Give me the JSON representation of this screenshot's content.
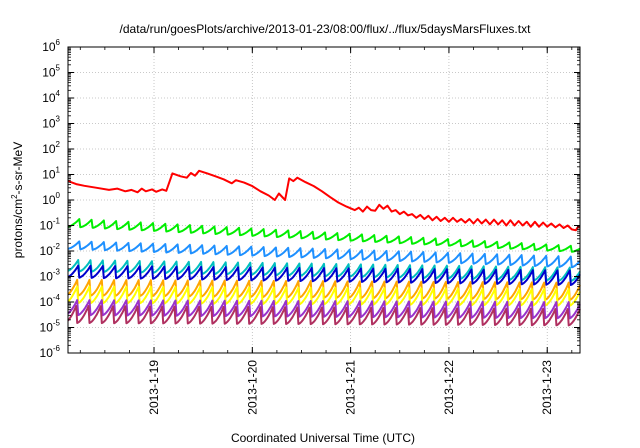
{
  "chart_data": {
    "type": "line",
    "title": "/data/run/goesPlots/archive/2013-01-23/08:00/flux/../flux/5daysMarsFluxes.txt",
    "xlabel": "Coordinated Universal Time (UTC)",
    "ylabel": {
      "pre": "protons/cm",
      "sup": "2",
      "post": "-s-sr-MeV"
    },
    "x_range": [
      "2013-01-18T03:00",
      "2013-01-23T08:00"
    ],
    "x_ticks": [
      "2013-1-19",
      "2013-1-20",
      "2013-1-21",
      "2013-1-22",
      "2013-1-23"
    ],
    "y_scale": "log",
    "ylim": [
      1e-06,
      1000000.0
    ],
    "y_tick_exponents": [
      "-6",
      "-5",
      "-4",
      "-3",
      "-2",
      "-1",
      "0",
      "1",
      "2",
      "3",
      "4",
      "5",
      "6"
    ],
    "y_tick_base": "10",
    "grid": true,
    "legend": "none",
    "series": [
      {
        "color": "#ff0000",
        "pattern": "sawtooth",
        "points": [
          [
            "2013-01-18T03:00",
            5.5
          ],
          [
            "2013-01-18T05:00",
            4.2
          ],
          [
            "2013-01-18T07:00",
            3.6
          ],
          [
            "2013-01-18T10:00",
            3.0
          ],
          [
            "2013-01-18T13:00",
            2.5
          ],
          [
            "2013-01-18T15:00",
            2.8
          ],
          [
            "2013-01-18T17:00",
            2.2
          ],
          [
            "2013-01-18T18:30",
            2.5
          ],
          [
            "2013-01-18T20:00",
            2.0
          ],
          [
            "2013-01-18T21:00",
            2.8
          ],
          [
            "2013-01-18T22:00",
            2.2
          ],
          [
            "2013-01-18T23:30",
            2.6
          ],
          [
            "2013-01-19T00:30",
            2.1
          ],
          [
            "2013-01-19T02:00",
            2.6
          ],
          [
            "2013-01-19T03:00",
            2.3
          ],
          [
            "2013-01-19T04:30",
            11.0
          ],
          [
            "2013-01-19T06:30",
            8.5
          ],
          [
            "2013-01-19T08:00",
            7.5
          ],
          [
            "2013-01-19T09:00",
            11.5
          ],
          [
            "2013-01-19T10:00",
            9.0
          ],
          [
            "2013-01-19T11:00",
            14.0
          ],
          [
            "2013-01-19T13:00",
            11.0
          ],
          [
            "2013-01-19T15:00",
            8.5
          ],
          [
            "2013-01-19T17:00",
            6.5
          ],
          [
            "2013-01-19T19:00",
            4.5
          ],
          [
            "2013-01-19T20:00",
            6.0
          ],
          [
            "2013-01-19T22:00",
            4.8
          ],
          [
            "2013-01-20T00:00",
            3.5
          ],
          [
            "2013-01-20T02:00",
            2.2
          ],
          [
            "2013-01-20T04:00",
            1.5
          ],
          [
            "2013-01-20T05:30",
            1.0
          ],
          [
            "2013-01-20T06:30",
            1.8
          ],
          [
            "2013-01-20T08:00",
            1.0
          ],
          [
            "2013-01-20T09:00",
            7.0
          ],
          [
            "2013-01-20T10:00",
            5.5
          ],
          [
            "2013-01-20T11:00",
            7.5
          ],
          [
            "2013-01-20T13:00",
            5.0
          ],
          [
            "2013-01-20T15:00",
            3.5
          ],
          [
            "2013-01-20T17:00",
            2.2
          ],
          [
            "2013-01-20T19:00",
            1.3
          ],
          [
            "2013-01-20T21:00",
            0.8
          ],
          [
            "2013-01-20T23:00",
            0.55
          ],
          [
            "2013-01-21T01:00",
            0.4
          ],
          [
            "2013-01-21T02:00",
            0.5
          ],
          [
            "2013-01-21T03:00",
            0.35
          ],
          [
            "2013-01-21T04:00",
            0.55
          ],
          [
            "2013-01-21T05:00",
            0.4
          ],
          [
            "2013-01-21T06:00",
            0.38
          ],
          [
            "2013-01-21T07:00",
            0.65
          ],
          [
            "2013-01-21T08:00",
            0.45
          ],
          [
            "2013-01-21T09:00",
            0.6
          ],
          [
            "2013-01-21T10:00",
            0.35
          ],
          [
            "2013-01-21T11:00",
            0.4
          ],
          [
            "2013-01-21T12:00",
            0.28
          ],
          [
            "2013-01-21T13:00",
            0.35
          ],
          [
            "2013-01-21T14:00",
            0.25
          ],
          [
            "2013-01-21T15:00",
            0.28
          ],
          [
            "2013-01-21T16:00",
            0.2
          ],
          [
            "2013-01-21T17:00",
            0.26
          ],
          [
            "2013-01-21T18:00",
            0.18
          ],
          [
            "2013-01-21T19:00",
            0.24
          ],
          [
            "2013-01-21T20:00",
            0.16
          ],
          [
            "2013-01-21T21:00",
            0.22
          ],
          [
            "2013-01-21T22:00",
            0.15
          ],
          [
            "2013-01-21T23:00",
            0.2
          ],
          [
            "2013-01-22T00:00",
            0.14
          ],
          [
            "2013-01-22T01:00",
            0.2
          ],
          [
            "2013-01-22T02:00",
            0.14
          ],
          [
            "2013-01-22T03:00",
            0.18
          ],
          [
            "2013-01-22T04:00",
            0.13
          ],
          [
            "2013-01-22T05:00",
            0.18
          ],
          [
            "2013-01-22T06:00",
            0.12
          ],
          [
            "2013-01-22T07:00",
            0.18
          ],
          [
            "2013-01-22T08:00",
            0.12
          ],
          [
            "2013-01-22T09:00",
            0.17
          ],
          [
            "2013-01-22T10:00",
            0.11
          ],
          [
            "2013-01-22T11:00",
            0.17
          ],
          [
            "2013-01-22T12:00",
            0.11
          ],
          [
            "2013-01-22T13:00",
            0.16
          ],
          [
            "2013-01-22T14:00",
            0.1
          ],
          [
            "2013-01-22T15:00",
            0.16
          ],
          [
            "2013-01-22T16:00",
            0.1
          ],
          [
            "2013-01-22T17:00",
            0.15
          ],
          [
            "2013-01-22T18:00",
            0.1
          ],
          [
            "2013-01-22T19:00",
            0.14
          ],
          [
            "2013-01-22T20:00",
            0.09
          ],
          [
            "2013-01-22T21:00",
            0.14
          ],
          [
            "2013-01-22T22:00",
            0.09
          ],
          [
            "2013-01-22T23:00",
            0.13
          ],
          [
            "2013-01-23T00:00",
            0.09
          ],
          [
            "2013-01-23T01:00",
            0.12
          ],
          [
            "2013-01-23T02:00",
            0.085
          ],
          [
            "2013-01-23T03:00",
            0.11
          ],
          [
            "2013-01-23T04:00",
            0.08
          ],
          [
            "2013-01-23T05:00",
            0.1
          ],
          [
            "2013-01-23T06:00",
            0.07
          ],
          [
            "2013-01-23T07:00",
            0.065
          ],
          [
            "2013-01-23T07:30",
            0.09
          ],
          [
            "2013-01-23T08:00",
            0.085
          ]
        ]
      },
      {
        "color": "#00ee00",
        "pattern": "sawtooth",
        "start": [
          0.2,
          0.09
        ],
        "end": [
          0.016,
          0.009
        ]
      },
      {
        "color": "#1e90ff",
        "pattern": "sawtooth",
        "start": [
          0.025,
          0.012
        ],
        "end": [
          0.006,
          0.0022
        ]
      },
      {
        "color": "#00bfbf",
        "pattern": "sawtooth",
        "start": [
          0.005,
          0.0016
        ],
        "end": [
          0.0025,
          0.00065
        ]
      },
      {
        "color": "#0000cd",
        "pattern": "sawtooth",
        "start": [
          0.0028,
          0.0009
        ],
        "end": [
          0.0018,
          0.00045
        ]
      },
      {
        "color": "#ffa500",
        "pattern": "sawtooth",
        "start": [
          0.0009,
          0.00018
        ],
        "end": [
          0.0007,
          0.00012
        ]
      },
      {
        "color": "#ffff00",
        "pattern": "sawtooth",
        "start": [
          0.00045,
          9e-05
        ],
        "end": [
          0.00035,
          7e-05
        ]
      },
      {
        "color": "#9932cc",
        "pattern": "sawtooth",
        "start": [
          0.00012,
          3e-05
        ],
        "end": [
          0.0001,
          2.2e-05
        ]
      },
      {
        "color": "#b03060",
        "pattern": "sawtooth",
        "start": [
          8e-05,
          1.5e-05
        ],
        "end": [
          6e-05,
          1.2e-05
        ]
      }
    ]
  }
}
